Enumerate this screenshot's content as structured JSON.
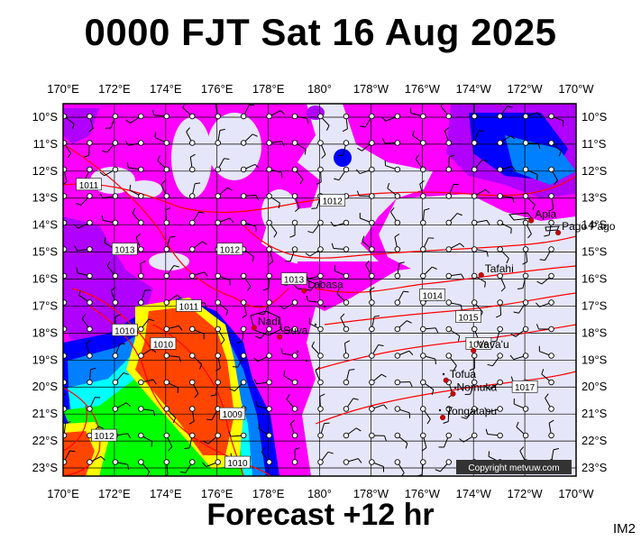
{
  "header": {
    "title": "0000 FJT Sat 16 Aug 2025"
  },
  "footer": {
    "forecast": "Forecast +12 hr",
    "model_code": "IM2"
  },
  "map": {
    "colors": {
      "background_low": "#e6e6fa",
      "precip_light": "#ff00ff",
      "precip_mid": "#b000ff",
      "precip_heavy": "#0000ff",
      "precip_blue": "#0080ff",
      "precip_cyan": "#00ffff",
      "precip_green": "#00ff00",
      "precip_yellow": "#ffff00",
      "precip_orange": "#ff4500",
      "isobar": "#ff0000",
      "grid": "#000000",
      "place_dot": "#cc0000"
    },
    "copyright": "Copyright metvuw.com",
    "lon_labels": [
      "170°E",
      "172°E",
      "174°E",
      "176°E",
      "178°E",
      "180°",
      "178°W",
      "176°W",
      "174°W",
      "172°W",
      "170°W"
    ],
    "lat_labels": [
      "10°S",
      "11°S",
      "12°S",
      "13°S",
      "14°S",
      "15°S",
      "16°S",
      "17°S",
      "18°S",
      "19°S",
      "20°S",
      "21°S",
      "22°S",
      "23°S"
    ],
    "isobar_labels": [
      {
        "text": "1011",
        "lon": 171.0,
        "lat": -12.5
      },
      {
        "text": "1012",
        "lon": 180.5,
        "lat": -13.1
      },
      {
        "text": "1012",
        "lon": 176.5,
        "lat": -14.9
      },
      {
        "text": "1013",
        "lon": 172.4,
        "lat": -14.9
      },
      {
        "text": "1013",
        "lon": 179.0,
        "lat": -16.0
      },
      {
        "text": "1014",
        "lon": -175.6,
        "lat": -16.6
      },
      {
        "text": "1015",
        "lon": -174.2,
        "lat": -17.4
      },
      {
        "text": "1016",
        "lon": -173.8,
        "lat": -18.4
      },
      {
        "text": "1017",
        "lon": -172.0,
        "lat": -20.0
      },
      {
        "text": "1011",
        "lon": 174.9,
        "lat": -17.0
      },
      {
        "text": "1010",
        "lon": 172.4,
        "lat": -17.9
      },
      {
        "text": "1010",
        "lon": 173.9,
        "lat": -18.4
      },
      {
        "text": "1009",
        "lon": 176.6,
        "lat": -21.0
      },
      {
        "text": "1010",
        "lon": 176.8,
        "lat": -22.8
      },
      {
        "text": "1012",
        "lon": 171.6,
        "lat": -21.8
      }
    ],
    "places": [
      {
        "name": "Apia",
        "lon": -171.75,
        "lat": -13.83
      },
      {
        "name": "Pago Pago",
        "lon": -170.7,
        "lat": -14.28
      },
      {
        "name": "Tafahi",
        "lon": -173.7,
        "lat": -15.85
      },
      {
        "name": "Labasa",
        "lon": 179.4,
        "lat": -16.43
      },
      {
        "name": "Nadi",
        "lon": 177.45,
        "lat": -17.8
      },
      {
        "name": "Suva",
        "lon": 178.44,
        "lat": -18.14
      },
      {
        "name": "Vava'u",
        "lon": -174.0,
        "lat": -18.65
      },
      {
        "name": "Tofua",
        "lon": -175.07,
        "lat": -19.75
      },
      {
        "name": "Nomuka",
        "lon": -174.8,
        "lat": -20.25
      },
      {
        "name": "Tongatapu",
        "lon": -175.2,
        "lat": -21.13
      }
    ]
  }
}
